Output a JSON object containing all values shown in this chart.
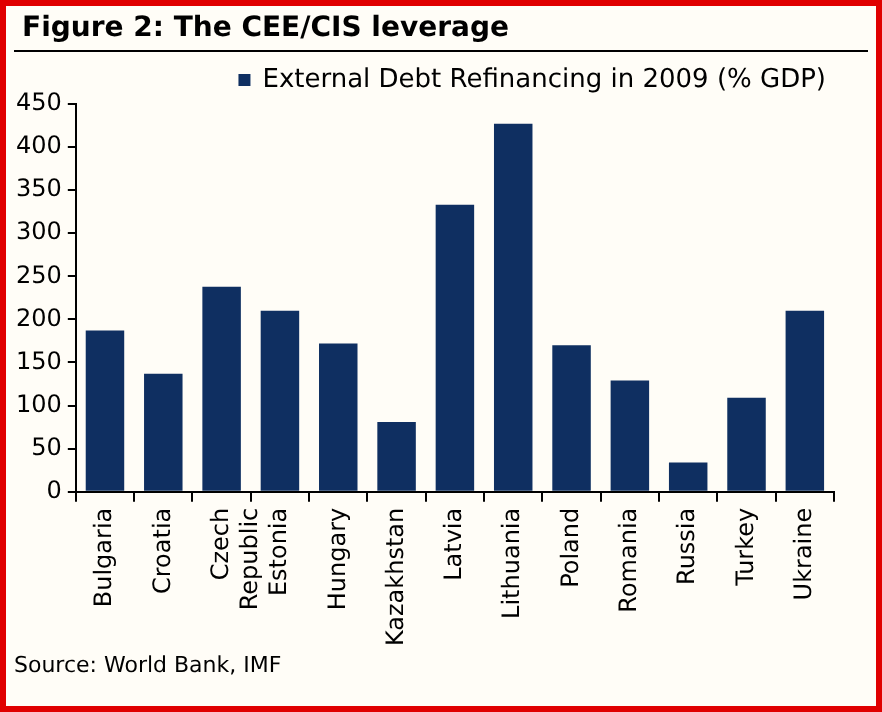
{
  "chart_data": {
    "type": "bar",
    "title": "Figure 2: The CEE/CIS leverage",
    "categories": [
      "Bulgaria",
      "Croatia",
      "Czech Republic",
      "Estonia",
      "Hungary",
      "Kazakhstan",
      "Latvia",
      "Lithuania",
      "Poland",
      "Romania",
      "Russia",
      "Turkey",
      "Ukraine"
    ],
    "series": [
      {
        "name": "External Debt Refinancing in 2009 (% GDP)",
        "color": "#0f2f61",
        "values": [
          187,
          137,
          238,
          210,
          172,
          81,
          333,
          427,
          170,
          129,
          34,
          109,
          210
        ]
      }
    ],
    "ylim": [
      0,
      450
    ],
    "yticks": [
      0,
      50,
      100,
      150,
      200,
      250,
      300,
      350,
      400,
      450
    ],
    "grid": false,
    "legend": "top right",
    "annotations": [
      "Source: World Bank, IMF"
    ]
  }
}
